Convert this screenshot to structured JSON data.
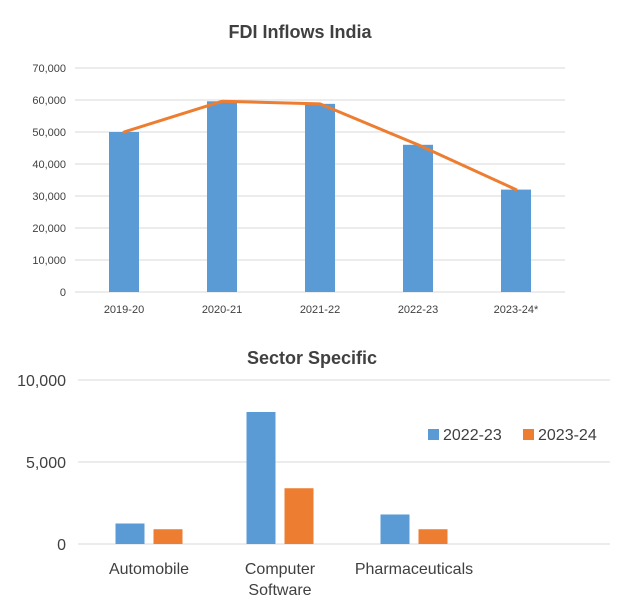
{
  "chart_data": [
    {
      "type": "bar",
      "title": "FDI Inflows India",
      "categories": [
        "2019-20",
        "2020-21",
        "2021-22",
        "2022-23",
        "2023-24*"
      ],
      "yticks": [
        "0",
        "10,000",
        "20,000",
        "30,000",
        "40,000",
        "50,000",
        "60,000",
        "70,000"
      ],
      "ylim": [
        0,
        70000
      ],
      "series": [
        {
          "values": [
            50000,
            59600,
            58800,
            46000,
            32000
          ],
          "color": "#5b9bd5",
          "mark": "bar"
        },
        {
          "values": [
            50000,
            59600,
            58800,
            46000,
            32000
          ],
          "color": "#ed7d31",
          "mark": "line"
        }
      ],
      "grid": true,
      "legend": "none"
    },
    {
      "type": "bar",
      "title": "Sector Specific",
      "categories": [
        "Automobile",
        "Computer Software",
        "Pharmaceuticals"
      ],
      "category_lines": [
        [
          "Automobile"
        ],
        [
          "Computer",
          "Software"
        ],
        [
          "Pharmaceuticals"
        ]
      ],
      "yticks": [
        "0",
        "5,000",
        "10,000"
      ],
      "ylim": [
        0,
        10000
      ],
      "series": [
        {
          "name": "2022-23",
          "values": [
            1250,
            8050,
            1800
          ],
          "color": "#5b9bd5"
        },
        {
          "name": "2023-24",
          "values": [
            900,
            3400,
            900
          ],
          "color": "#ed7d31"
        }
      ],
      "grid": true,
      "legend": "right"
    }
  ]
}
